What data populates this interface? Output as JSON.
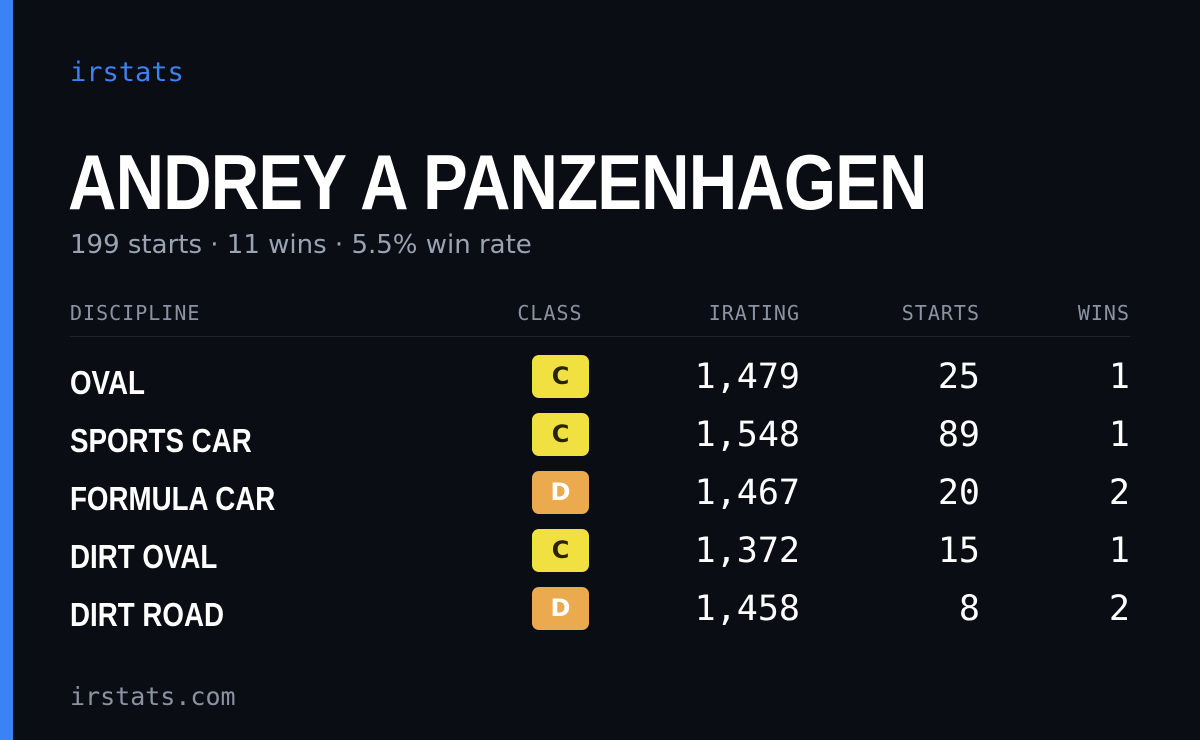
{
  "brand": "irstats",
  "driver": {
    "name": "ANDREY A PANZENHAGEN",
    "summary": "199 starts · 11 wins · 5.5% win rate"
  },
  "table": {
    "headers": {
      "discipline": "DISCIPLINE",
      "class": "CLASS",
      "irating": "IRATING",
      "starts": "STARTS",
      "wins": "WINS"
    },
    "rows": [
      {
        "discipline": "OVAL",
        "class": "C",
        "irating": "1,479",
        "starts": "25",
        "wins": "1"
      },
      {
        "discipline": "SPORTS CAR",
        "class": "C",
        "irating": "1,548",
        "starts": "89",
        "wins": "1"
      },
      {
        "discipline": "FORMULA CAR",
        "class": "D",
        "irating": "1,467",
        "starts": "20",
        "wins": "2"
      },
      {
        "discipline": "DIRT OVAL",
        "class": "C",
        "irating": "1,372",
        "starts": "15",
        "wins": "1"
      },
      {
        "discipline": "DIRT ROAD",
        "class": "D",
        "irating": "1,458",
        "starts": "8",
        "wins": "2"
      }
    ]
  },
  "footer": "irstats.com",
  "colors": {
    "accent": "#3b82f6",
    "background": "#0b0d14",
    "class_c": "#f0e140",
    "class_d": "#ecaa4f"
  }
}
